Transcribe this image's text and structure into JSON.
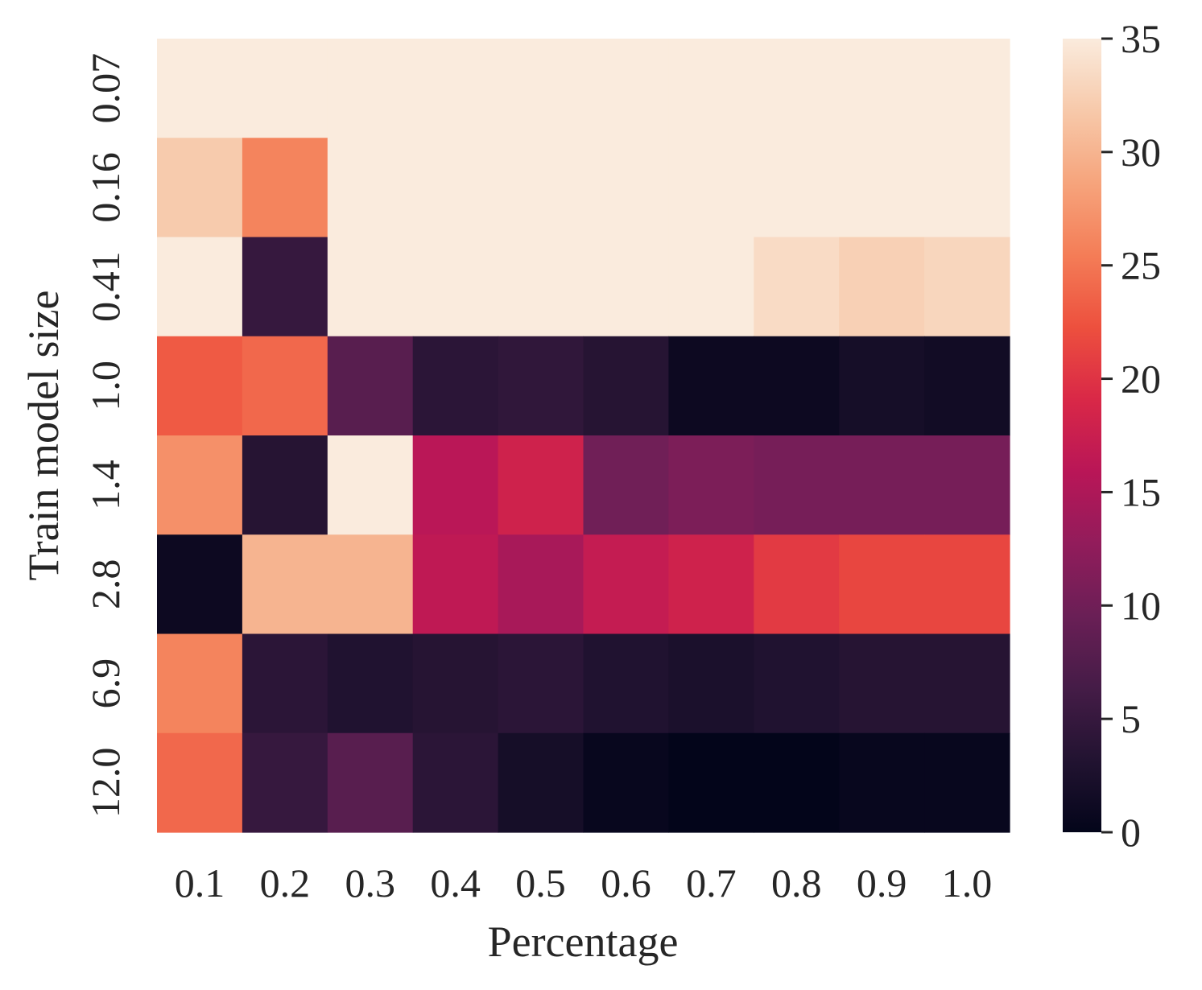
{
  "chart_data": {
    "type": "heatmap",
    "title": "",
    "xlabel": "Percentage",
    "ylabel": "Train model size",
    "x_categories": [
      "0.1",
      "0.2",
      "0.3",
      "0.4",
      "0.5",
      "0.6",
      "0.7",
      "0.8",
      "0.9",
      "1.0"
    ],
    "y_categories": [
      "0.07",
      "0.16",
      "0.41",
      "1.0",
      "1.4",
      "2.8",
      "6.9",
      "12.0"
    ],
    "values": [
      [
        35,
        35,
        35,
        35,
        35,
        35,
        35,
        35,
        35,
        35
      ],
      [
        32,
        26,
        35,
        35,
        35,
        35,
        35,
        35,
        35,
        35
      ],
      [
        35,
        5,
        35,
        35,
        35,
        35,
        35,
        33.5,
        32.5,
        33
      ],
      [
        23,
        24,
        8,
        4,
        4.5,
        3.5,
        1,
        1,
        2,
        1.5
      ],
      [
        27,
        3.5,
        35,
        16,
        18,
        10,
        11,
        10.5,
        10.5,
        10.5
      ],
      [
        1,
        30,
        30,
        16.5,
        14.5,
        17,
        18,
        20.5,
        21.5,
        21.5
      ],
      [
        26,
        4,
        3,
        3.5,
        4,
        3,
        2.5,
        3,
        3.5,
        3.5
      ],
      [
        24,
        5,
        8,
        4,
        2,
        0.5,
        0,
        0,
        0.5,
        0.5
      ]
    ],
    "colorbar": {
      "min": 0,
      "max": 35,
      "ticks": [
        "0",
        "5",
        "10",
        "15",
        "20",
        "25",
        "30",
        "35"
      ],
      "colormap": "rocket",
      "colormap_stops": [
        "#03051a",
        "#221331",
        "#451c47",
        "#6a1f56",
        "#921c5b",
        "#b91657",
        "#d92847",
        "#ed503e",
        "#f47d57",
        "#f6a47c",
        "#f7c9aa",
        "#faebdd"
      ]
    },
    "grid": false,
    "legend": "colorbar-right"
  }
}
